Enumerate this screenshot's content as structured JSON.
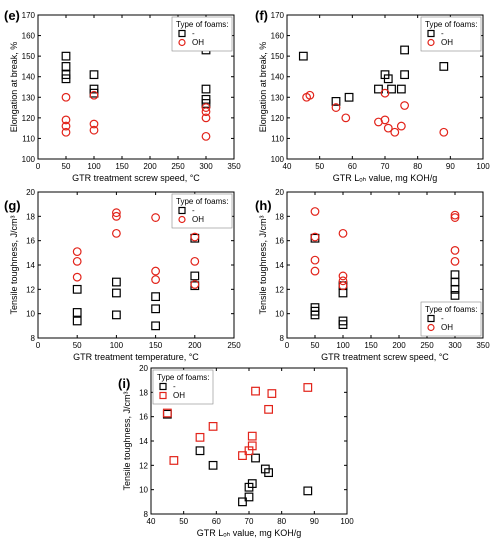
{
  "colors": {
    "axis": "#000000",
    "series_dash": "#000000",
    "series_oh": "#e2231a"
  },
  "chart_data": [
    {
      "type": "scatter",
      "id": "e",
      "letter": "(e)",
      "xlabel": "GTR treatment screw speed, °C",
      "ylabel": "Elongation at break, %",
      "xlim": [
        0,
        350
      ],
      "ylim": [
        100,
        170
      ],
      "xticks": [
        0,
        50,
        100,
        150,
        200,
        250,
        300,
        350
      ],
      "yticks": [
        100,
        110,
        120,
        130,
        140,
        150,
        160,
        170
      ],
      "legend": {
        "title": "Type of foams:",
        "position": "top-right"
      },
      "series": [
        {
          "name": "-",
          "marker": "square",
          "color": "#000000",
          "points": [
            [
              50,
              150
            ],
            [
              50,
              145
            ],
            [
              50,
              141
            ],
            [
              50,
              139
            ],
            [
              100,
              141
            ],
            [
              100,
              134
            ],
            [
              100,
              132
            ],
            [
              300,
              153
            ],
            [
              300,
              134
            ],
            [
              300,
              129
            ],
            [
              300,
              127
            ]
          ]
        },
        {
          "name": "OH",
          "marker": "circle",
          "color": "#e2231a",
          "points": [
            [
              50,
              130
            ],
            [
              50,
              119
            ],
            [
              50,
              116
            ],
            [
              50,
              113
            ],
            [
              100,
              131
            ],
            [
              100,
              117
            ],
            [
              100,
              114
            ],
            [
              300,
              125
            ],
            [
              300,
              123
            ],
            [
              300,
              120
            ],
            [
              300,
              111
            ]
          ]
        }
      ]
    },
    {
      "type": "scatter",
      "id": "f",
      "letter": "(f)",
      "xlabel": "GTR Lₒₕ value, mg KOH/g",
      "ylabel": "Elongation at break, %",
      "xlim": [
        40,
        100
      ],
      "ylim": [
        100,
        170
      ],
      "xticks": [
        40,
        50,
        60,
        70,
        80,
        90,
        100
      ],
      "yticks": [
        100,
        110,
        120,
        130,
        140,
        150,
        160,
        170
      ],
      "legend": {
        "title": "Type of foams:",
        "position": "top-right"
      },
      "series": [
        {
          "name": "-",
          "marker": "square",
          "color": "#000000",
          "points": [
            [
              45,
              150
            ],
            [
              55,
              128
            ],
            [
              59,
              130
            ],
            [
              68,
              134
            ],
            [
              70,
              141
            ],
            [
              71,
              139
            ],
            [
              72,
              134
            ],
            [
              75,
              134
            ],
            [
              76,
              141
            ],
            [
              76,
              153
            ],
            [
              88,
              145
            ]
          ]
        },
        {
          "name": "OH",
          "marker": "circle",
          "color": "#e2231a",
          "points": [
            [
              46,
              130
            ],
            [
              47,
              131
            ],
            [
              55,
              125
            ],
            [
              58,
              120
            ],
            [
              68,
              118
            ],
            [
              70,
              132
            ],
            [
              70,
              119
            ],
            [
              71,
              115
            ],
            [
              73,
              113
            ],
            [
              75,
              116
            ],
            [
              76,
              126
            ],
            [
              88,
              113
            ]
          ]
        }
      ]
    },
    {
      "type": "scatter",
      "id": "g",
      "letter": "(g)",
      "xlabel": "GTR treatment temperature, °C",
      "ylabel": "Tensile toughness, J/cm³",
      "xlim": [
        0,
        250
      ],
      "ylim": [
        8,
        20
      ],
      "xticks": [
        0,
        50,
        100,
        150,
        200,
        250
      ],
      "yticks": [
        8,
        10,
        12,
        14,
        16,
        18,
        20
      ],
      "legend": {
        "title": "Type of foams:",
        "position": "top-right"
      },
      "series": [
        {
          "name": "-",
          "marker": "square",
          "color": "#000000",
          "points": [
            [
              50,
              12.0
            ],
            [
              50,
              10.1
            ],
            [
              50,
              9.4
            ],
            [
              100,
              12.6
            ],
            [
              100,
              11.7
            ],
            [
              100,
              9.9
            ],
            [
              150,
              11.4
            ],
            [
              150,
              10.4
            ],
            [
              150,
              9.0
            ],
            [
              200,
              16.2
            ],
            [
              200,
              13.1
            ],
            [
              200,
              12.3
            ]
          ]
        },
        {
          "name": "OH",
          "marker": "circle",
          "color": "#e2231a",
          "points": [
            [
              50,
              15.1
            ],
            [
              50,
              14.3
            ],
            [
              50,
              13.0
            ],
            [
              100,
              18.3
            ],
            [
              100,
              18.0
            ],
            [
              100,
              16.6
            ],
            [
              150,
              17.9
            ],
            [
              150,
              13.5
            ],
            [
              150,
              12.8
            ],
            [
              200,
              16.3
            ],
            [
              200,
              14.3
            ],
            [
              200,
              12.4
            ]
          ]
        }
      ]
    },
    {
      "type": "scatter",
      "id": "h",
      "letter": "(h)",
      "xlabel": "GTR treatment screw speed, °C",
      "ylabel": "Tensile toughness, J/cm³",
      "xlim": [
        0,
        350
      ],
      "ylim": [
        8,
        20
      ],
      "xticks": [
        0,
        50,
        100,
        150,
        200,
        250,
        300,
        350
      ],
      "yticks": [
        8,
        10,
        12,
        14,
        16,
        18,
        20
      ],
      "legend": {
        "title": "Type of foams:",
        "position": "bottom-right"
      },
      "series": [
        {
          "name": "-",
          "marker": "square",
          "color": "#000000",
          "points": [
            [
              50,
              16.2
            ],
            [
              50,
              10.5
            ],
            [
              50,
              10.2
            ],
            [
              50,
              9.9
            ],
            [
              100,
              12.3
            ],
            [
              100,
              11.7
            ],
            [
              100,
              9.4
            ],
            [
              100,
              9.1
            ],
            [
              300,
              13.2
            ],
            [
              300,
              12.6
            ],
            [
              300,
              12.0
            ],
            [
              300,
              11.5
            ]
          ]
        },
        {
          "name": "OH",
          "marker": "circle",
          "color": "#e2231a",
          "points": [
            [
              50,
              18.4
            ],
            [
              50,
              16.3
            ],
            [
              50,
              14.4
            ],
            [
              50,
              13.5
            ],
            [
              100,
              16.6
            ],
            [
              100,
              13.1
            ],
            [
              100,
              12.7
            ],
            [
              100,
              12.3
            ],
            [
              300,
              18.1
            ],
            [
              300,
              17.9
            ],
            [
              300,
              15.2
            ],
            [
              300,
              14.3
            ]
          ]
        }
      ]
    },
    {
      "type": "scatter",
      "id": "i",
      "letter": "(i)",
      "xlabel": "GTR Lₒₕ value, mg KOH/g",
      "ylabel": "Tensile toughness, J/cm³",
      "xlim": [
        40,
        100
      ],
      "ylim": [
        8,
        20
      ],
      "xticks": [
        40,
        50,
        60,
        70,
        80,
        90,
        100
      ],
      "yticks": [
        8,
        10,
        12,
        14,
        16,
        18,
        20
      ],
      "legend": {
        "title": "Type of foams:",
        "position": "top-left"
      },
      "series": [
        {
          "name": "-",
          "marker": "square",
          "color": "#000000",
          "points": [
            [
              45,
              16.2
            ],
            [
              55,
              13.2
            ],
            [
              59,
              12.0
            ],
            [
              68,
              9.0
            ],
            [
              70,
              9.4
            ],
            [
              70,
              10.2
            ],
            [
              71,
              10.5
            ],
            [
              72,
              12.6
            ],
            [
              75,
              11.7
            ],
            [
              76,
              11.4
            ],
            [
              88,
              9.9
            ]
          ]
        },
        {
          "name": "OH",
          "marker": "square",
          "color": "#e2231a",
          "points": [
            [
              45,
              16.3
            ],
            [
              47,
              12.4
            ],
            [
              55,
              14.3
            ],
            [
              59,
              15.2
            ],
            [
              68,
              12.8
            ],
            [
              70,
              13.2
            ],
            [
              71,
              14.4
            ],
            [
              71,
              13.6
            ],
            [
              72,
              18.1
            ],
            [
              76,
              16.6
            ],
            [
              77,
              17.9
            ],
            [
              88,
              18.4
            ]
          ]
        }
      ]
    }
  ]
}
